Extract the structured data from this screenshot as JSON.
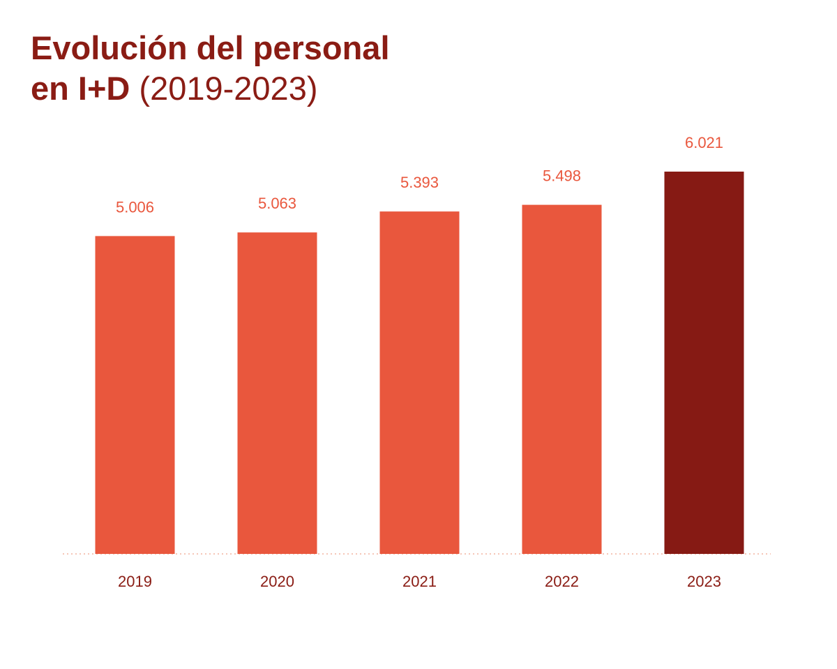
{
  "title": {
    "line1": "Evolución del personal",
    "line2_bold": "en I+D",
    "line2_light": "(2019-2023)"
  },
  "colors": {
    "title": "#8a1c14",
    "bar": "#e9573d",
    "bar_highlight": "#861a14",
    "value_label": "#e9573d",
    "tick_label": "#8a1c14",
    "baseline": "#f3b49e"
  },
  "chart_data": {
    "type": "bar",
    "categories": [
      "2019",
      "2020",
      "2021",
      "2022",
      "2023"
    ],
    "values": [
      5006,
      5063,
      5393,
      5498,
      6021
    ],
    "value_labels": [
      "5.006",
      "5.063",
      "5.393",
      "5.498",
      "6.021"
    ],
    "highlight_index": 4,
    "title": "Evolución del personal en I+D (2019-2023)",
    "xlabel": "",
    "ylabel": "",
    "ylim": [
      0,
      6021
    ],
    "grid": false,
    "legend": "none"
  }
}
